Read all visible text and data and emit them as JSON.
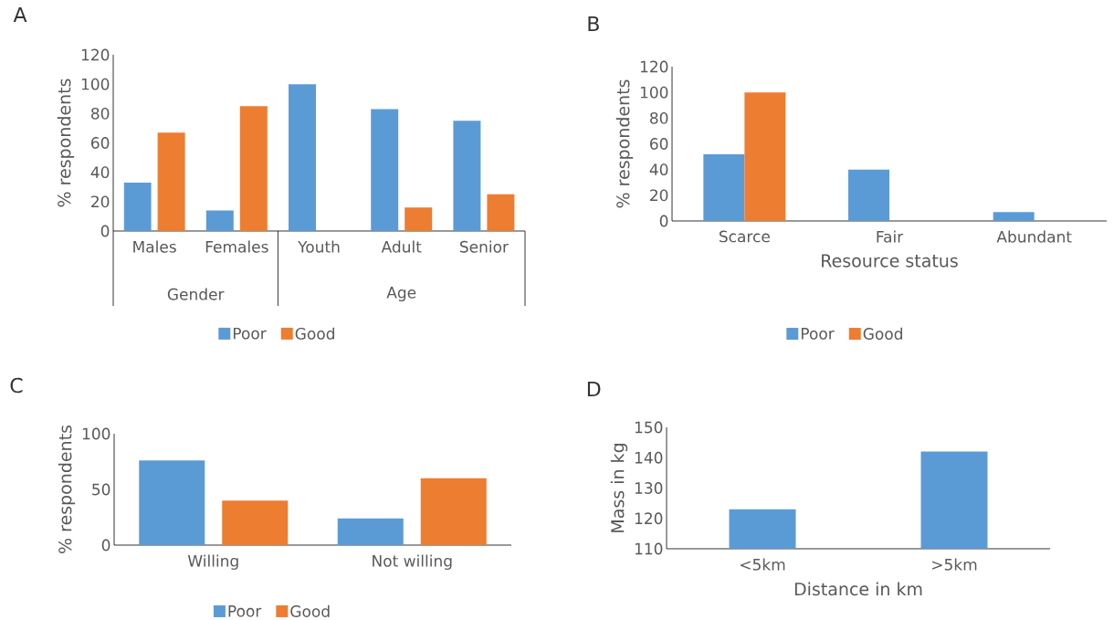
{
  "chart_data": [
    {
      "type": "bar",
      "title": "A",
      "ylabel": "% respondents",
      "categories": [
        "Males",
        "Females",
        "Youth",
        "Adult",
        "Senior"
      ],
      "series": [
        {
          "name": "Poor",
          "color": "#5b9bd5",
          "values": [
            33,
            14,
            100,
            83,
            75
          ]
        },
        {
          "name": "Good",
          "color": "#ed7d31",
          "values": [
            67,
            85,
            0,
            16,
            25
          ]
        }
      ],
      "ylim": [
        0,
        120
      ],
      "yticks": [
        0,
        20,
        40,
        60,
        80,
        100,
        120
      ],
      "legend": "bottom",
      "annotations": [
        "Gender",
        "Age"
      ]
    },
    {
      "type": "bar",
      "title": "B",
      "xlabel": "Resource status",
      "ylabel": "% respondents",
      "categories": [
        "Scarce",
        "Fair",
        "Abundant"
      ],
      "series": [
        {
          "name": "Poor",
          "color": "#5b9bd5",
          "values": [
            52,
            40,
            7
          ]
        },
        {
          "name": "Good",
          "color": "#ed7d31",
          "values": [
            100,
            0,
            0
          ]
        }
      ],
      "ylim": [
        0,
        120
      ],
      "yticks": [
        0,
        20,
        40,
        60,
        80,
        100,
        120
      ],
      "legend": "bottom"
    },
    {
      "type": "bar",
      "title": "C",
      "ylabel": "% respondents",
      "categories": [
        "Willing",
        "Not willing"
      ],
      "series": [
        {
          "name": "Poor",
          "color": "#5b9bd5",
          "values": [
            76,
            24
          ]
        },
        {
          "name": "Good",
          "color": "#ed7d31",
          "values": [
            40,
            60
          ]
        }
      ],
      "ylim": [
        0,
        100
      ],
      "yticks": [
        0,
        50,
        100
      ],
      "legend": "bottom"
    },
    {
      "type": "bar",
      "title": "D",
      "xlabel": "Distance in km",
      "ylabel": "Mass in kg",
      "categories": [
        "<5km",
        ">5km"
      ],
      "series": [
        {
          "color": "#5b9bd5",
          "values": [
            123,
            142
          ]
        }
      ],
      "ylim": [
        110,
        150
      ],
      "yticks": [
        110,
        120,
        130,
        140,
        150
      ]
    }
  ]
}
